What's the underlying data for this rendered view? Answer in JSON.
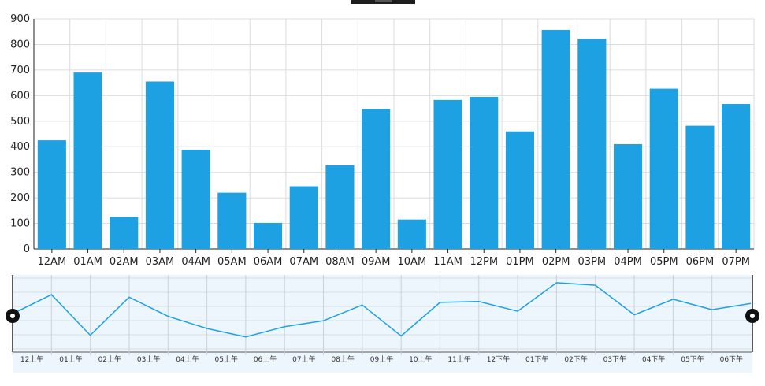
{
  "chart_data": [
    {
      "type": "bar",
      "categories": [
        "12AM",
        "01AM",
        "02AM",
        "03AM",
        "04AM",
        "05AM",
        "06AM",
        "07AM",
        "08AM",
        "09AM",
        "10AM",
        "11AM",
        "12PM",
        "01PM",
        "02PM",
        "03PM",
        "04PM",
        "05PM",
        "06PM",
        "07PM"
      ],
      "values": [
        425,
        690,
        125,
        655,
        388,
        220,
        102,
        245,
        327,
        547,
        115,
        583,
        595,
        460,
        857,
        822,
        410,
        627,
        482,
        567
      ],
      "ylim": [
        0,
        900
      ],
      "yticks": [
        0,
        100,
        200,
        300,
        400,
        500,
        600,
        700,
        800,
        900
      ],
      "grid": true,
      "color": "#1da1e2"
    },
    {
      "type": "line",
      "role": "range-navigator",
      "tick_labels": [
        "12上午",
        "01上午",
        "02上午",
        "03上午",
        "04上午",
        "05上午",
        "06上午",
        "07上午",
        "08上午",
        "09上午",
        "10上午",
        "11上午",
        "12下午",
        "01下午",
        "02下午",
        "03下午",
        "04下午",
        "05下午",
        "06下午"
      ],
      "values": [
        425,
        690,
        125,
        655,
        388,
        220,
        102,
        245,
        327,
        547,
        115,
        583,
        595,
        460,
        857,
        822,
        410,
        627,
        482,
        567
      ],
      "ylim": [
        0,
        900
      ],
      "line_color": "#1da1e2",
      "background_color": "#eef6fd"
    }
  ]
}
